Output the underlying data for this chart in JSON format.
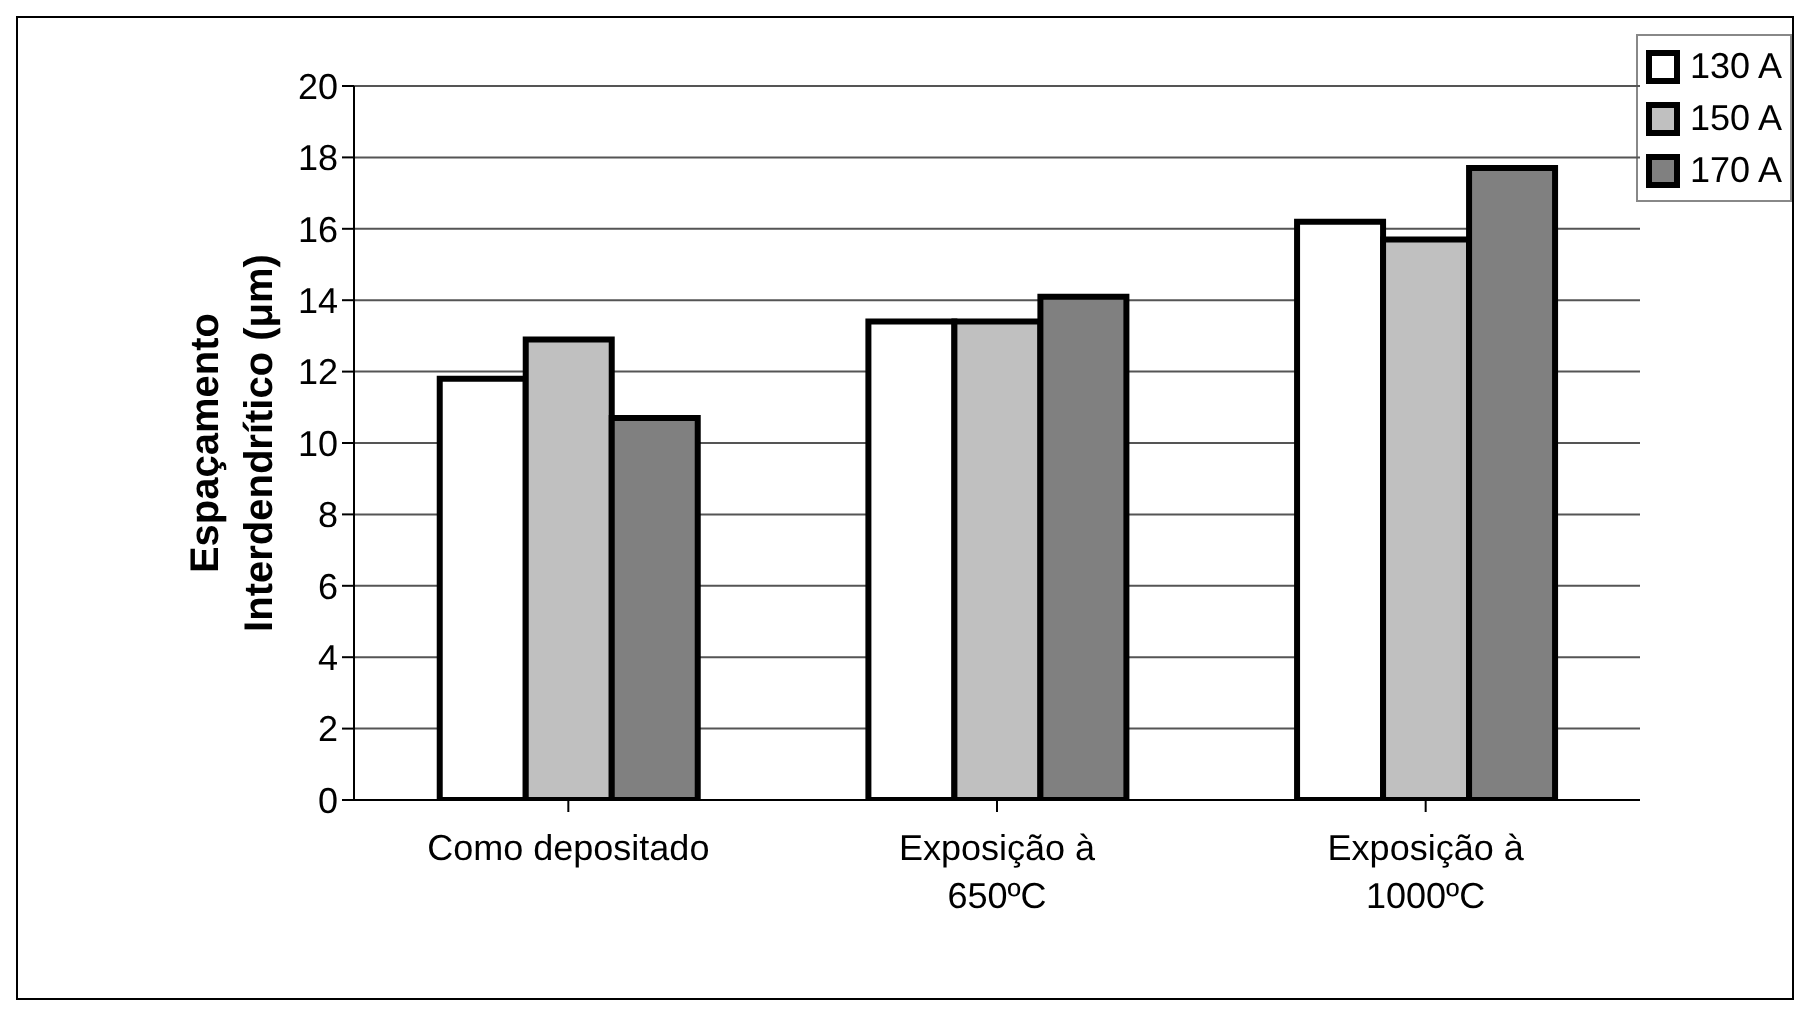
{
  "chart_data": {
    "type": "bar",
    "ylabel": "Espaçamento Interdendrítico (μm)",
    "categories": [
      "Como depositado",
      "Exposição à 650ºC",
      "Exposição à 1000ºC"
    ],
    "series": [
      {
        "name": "130 A",
        "color": "#ffffff",
        "values": [
          11.8,
          13.4,
          16.2
        ]
      },
      {
        "name": "150 A",
        "color": "#c0c0c0",
        "values": [
          12.9,
          13.4,
          15.7
        ]
      },
      {
        "name": "170 A",
        "color": "#808080",
        "values": [
          10.7,
          14.1,
          17.7
        ]
      }
    ],
    "ylim": [
      0,
      20
    ],
    "yticks": [
      0,
      2,
      4,
      6,
      8,
      10,
      12,
      14,
      16,
      18,
      20
    ],
    "grid": "y",
    "legend": "top right"
  }
}
